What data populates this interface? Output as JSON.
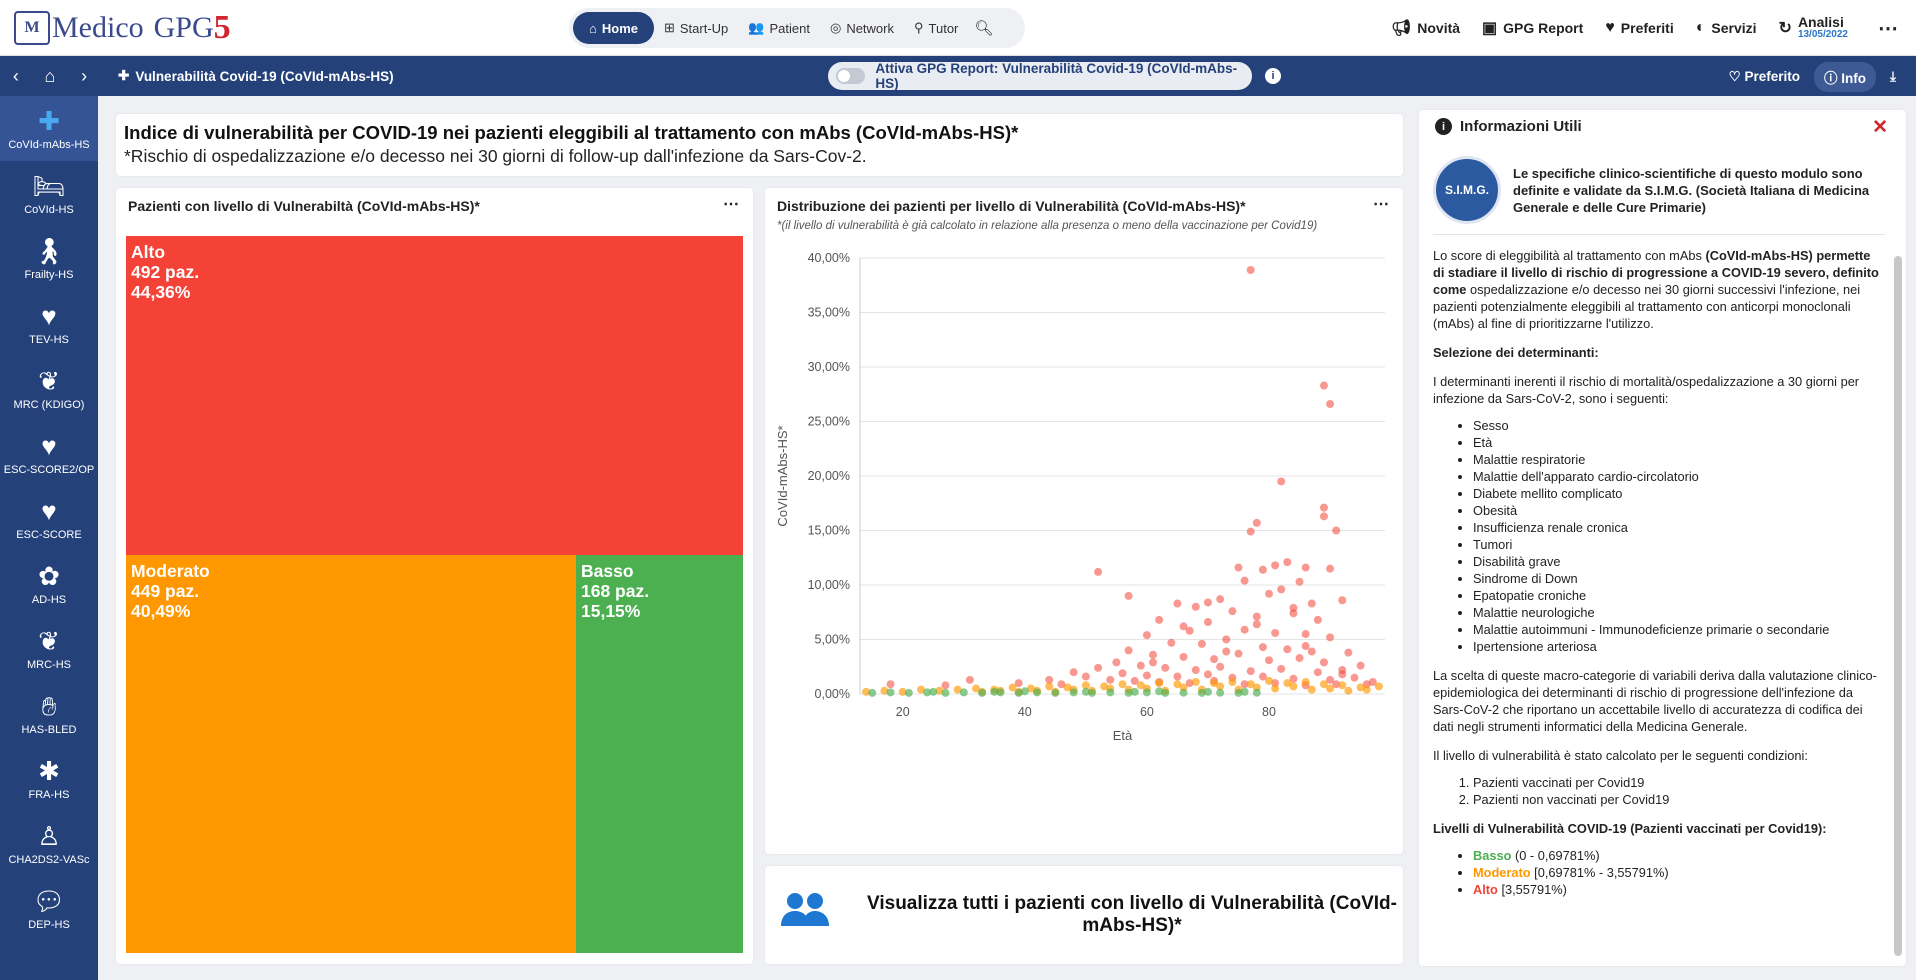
{
  "app": {
    "logo": {
      "mark": "M",
      "word": "Medico",
      "product": "GPG",
      "version": "5"
    },
    "tabs": [
      {
        "label": "Home",
        "icon": "home-icon"
      },
      {
        "label": "Start-Up",
        "icon": "grid-icon"
      },
      {
        "label": "Patient",
        "icon": "users-icon"
      },
      {
        "label": "Network",
        "icon": "network-icon"
      },
      {
        "label": "Tutor",
        "icon": "tutor-icon"
      }
    ],
    "right_menu": {
      "novita": "Novità",
      "gpg_report": "GPG Report",
      "preferiti": "Preferiti",
      "servizi": "Servizi",
      "analisi": "Analisi",
      "analisi_date": "13/05/2022"
    }
  },
  "bar2": {
    "breadcrumb": "Vulnerabilità Covid-19 (CoVId-mAbs-HS)",
    "toggle_label": "Attiva GPG Report: Vulnerabilità Covid-19 (CoVId-mAbs-HS)",
    "preferito": "Preferito",
    "info": "Info"
  },
  "sidebar": [
    {
      "label": "CoVId-mAbs-HS",
      "icon": "covid-icon"
    },
    {
      "label": "CoVId-HS",
      "icon": "bed-icon"
    },
    {
      "label": "Frailty-HS",
      "icon": "walker-icon"
    },
    {
      "label": "TEV-HS",
      "icon": "heart-pulse-icon"
    },
    {
      "label": "MRC (KDIGO)",
      "icon": "kidney-icon"
    },
    {
      "label": "ESC-SCORE2/OP",
      "icon": "heart-pulse-icon"
    },
    {
      "label": "ESC-SCORE",
      "icon": "heart-pulse-icon"
    },
    {
      "label": "AD-HS",
      "icon": "brain-icon"
    },
    {
      "label": "MRC-HS",
      "icon": "kidney-icon"
    },
    {
      "label": "HAS-BLED",
      "icon": "hands-icon"
    },
    {
      "label": "FRA-HS",
      "icon": "bone-icon"
    },
    {
      "label": "CHA2DS2-VASc",
      "icon": "person-icon"
    },
    {
      "label": "DEP-HS",
      "icon": "speech-icon"
    }
  ],
  "header": {
    "title": "Indice di vulnerabilità per COVID-19 nei pazienti eleggibili al trattamento con mAbs (CoVId-mAbs-HS)*",
    "subtitle": "*Rischio di ospedalizzazione e/o decesso nei 30 giorni di follow-up dall'infezione da Sars-Cov-2."
  },
  "treemap": {
    "title": "Pazienti con livello di Vulnerabiltà (CoVId-mAbs-HS)*",
    "tiles": [
      {
        "name": "Alto",
        "count": "492 paz.",
        "pct": "44,36%",
        "color": "#f44336"
      },
      {
        "name": "Moderato",
        "count": "449 paz.",
        "pct": "40,49%",
        "color": "#ff9800"
      },
      {
        "name": "Basso",
        "count": "168 paz.",
        "pct": "15,15%",
        "color": "#4caf50"
      }
    ]
  },
  "scatter": {
    "title": "Distribuzione dei pazienti per livello di Vulnerabilità (CoVId-mAbs-HS)*",
    "subtitle": "*(il livello di vulnerabilità è già calcolato in relazione alla presenza o meno della vaccinazione per Covid19)"
  },
  "chart_data": {
    "type": "scatter",
    "xlabel": "Età",
    "ylabel": "CoVId-mAbs-HS*",
    "xlim": [
      13,
      99
    ],
    "ylim": [
      0,
      40
    ],
    "xticks": [
      20,
      40,
      60,
      80
    ],
    "yticks": [
      "0,00%",
      "5,00%",
      "10,00%",
      "15,00%",
      "20,00%",
      "25,00%",
      "30,00%",
      "35,00%",
      "40,00%"
    ],
    "series": [
      {
        "level": "high",
        "color": "#f44336",
        "points": [
          [
            77,
            38.9
          ],
          [
            89,
            28.3
          ],
          [
            90,
            26.6
          ],
          [
            82,
            19.5
          ],
          [
            89,
            17.1
          ],
          [
            89,
            16.3
          ],
          [
            78,
            15.7
          ],
          [
            91,
            15.0
          ],
          [
            77,
            14.9
          ],
          [
            52,
            11.2
          ],
          [
            83,
            12.1
          ],
          [
            75,
            11.6
          ],
          [
            79,
            11.4
          ],
          [
            81,
            11.8
          ],
          [
            86,
            11.6
          ],
          [
            90,
            11.5
          ],
          [
            85,
            10.3
          ],
          [
            82,
            9.6
          ],
          [
            80,
            9.2
          ],
          [
            87,
            8.3
          ],
          [
            92,
            8.6
          ],
          [
            72,
            8.7
          ],
          [
            68,
            8.0
          ],
          [
            65,
            8.3
          ],
          [
            57,
            9.0
          ],
          [
            74,
            7.6
          ],
          [
            78,
            7.1
          ],
          [
            84,
            7.4
          ],
          [
            88,
            6.8
          ],
          [
            70,
            6.6
          ],
          [
            62,
            6.8
          ],
          [
            66,
            6.2
          ],
          [
            76,
            5.9
          ],
          [
            81,
            5.6
          ],
          [
            86,
            5.5
          ],
          [
            90,
            5.2
          ],
          [
            73,
            5.0
          ],
          [
            60,
            5.4
          ],
          [
            64,
            4.7
          ],
          [
            69,
            4.6
          ],
          [
            79,
            4.3
          ],
          [
            83,
            4.1
          ],
          [
            87,
            3.9
          ],
          [
            93,
            3.8
          ],
          [
            57,
            4.0
          ],
          [
            61,
            3.6
          ],
          [
            66,
            3.4
          ],
          [
            71,
            3.2
          ],
          [
            75,
            3.7
          ],
          [
            80,
            3.1
          ],
          [
            85,
            3.3
          ],
          [
            89,
            2.9
          ],
          [
            95,
            2.6
          ],
          [
            55,
            2.9
          ],
          [
            59,
            2.6
          ],
          [
            63,
            2.4
          ],
          [
            68,
            2.2
          ],
          [
            72,
            2.5
          ],
          [
            77,
            2.1
          ],
          [
            82,
            2.3
          ],
          [
            88,
            2.0
          ],
          [
            92,
            2.2
          ],
          [
            52,
            2.4
          ],
          [
            56,
            1.9
          ],
          [
            60,
            1.7
          ],
          [
            65,
            1.6
          ],
          [
            70,
            1.8
          ],
          [
            74,
            1.5
          ],
          [
            79,
            1.6
          ],
          [
            84,
            1.4
          ],
          [
            90,
            1.3
          ],
          [
            94,
            1.5
          ],
          [
            97,
            1.1
          ],
          [
            48,
            2.0
          ],
          [
            50,
            1.6
          ],
          [
            54,
            1.3
          ],
          [
            58,
            1.2
          ],
          [
            62,
            1.1
          ],
          [
            67,
            1.0
          ],
          [
            71,
            1.2
          ],
          [
            76,
            0.9
          ],
          [
            81,
            1.0
          ],
          [
            86,
            0.8
          ],
          [
            91,
            0.9
          ],
          [
            44,
            1.3
          ],
          [
            46,
            0.9
          ],
          [
            39,
            1.0
          ],
          [
            31,
            1.3
          ],
          [
            27,
            0.8
          ],
          [
            18,
            0.9
          ],
          [
            67,
            5.8
          ],
          [
            70,
            8.4
          ],
          [
            84,
            7.9
          ],
          [
            76,
            10.4
          ],
          [
            92,
            1.8
          ],
          [
            96,
            0.9
          ],
          [
            61,
            2.9
          ],
          [
            73,
            3.9
          ],
          [
            78,
            6.4
          ],
          [
            86,
            4.4
          ]
        ]
      },
      {
        "level": "moderate",
        "color": "#ff9800",
        "points": [
          [
            14,
            0.2
          ],
          [
            17,
            0.3
          ],
          [
            20,
            0.2
          ],
          [
            23,
            0.4
          ],
          [
            26,
            0.3
          ],
          [
            29,
            0.4
          ],
          [
            32,
            0.5
          ],
          [
            35,
            0.4
          ],
          [
            38,
            0.6
          ],
          [
            41,
            0.5
          ],
          [
            44,
            0.7
          ],
          [
            47,
            0.6
          ],
          [
            50,
            0.8
          ],
          [
            53,
            0.7
          ],
          [
            56,
            0.9
          ],
          [
            59,
            0.8
          ],
          [
            62,
            1.0
          ],
          [
            65,
            0.9
          ],
          [
            68,
            1.1
          ],
          [
            71,
            1.0
          ],
          [
            74,
            1.1
          ],
          [
            77,
            0.9
          ],
          [
            80,
            1.2
          ],
          [
            83,
            1.0
          ],
          [
            86,
            1.1
          ],
          [
            89,
            0.9
          ],
          [
            92,
            0.8
          ],
          [
            95,
            0.6
          ],
          [
            98,
            0.7
          ],
          [
            36,
            0.3
          ],
          [
            42,
            0.3
          ],
          [
            48,
            0.4
          ],
          [
            54,
            0.5
          ],
          [
            60,
            0.5
          ],
          [
            66,
            0.6
          ],
          [
            72,
            0.7
          ],
          [
            78,
            0.6
          ],
          [
            84,
            0.7
          ],
          [
            90,
            0.5
          ],
          [
            96,
            0.4
          ],
          [
            51,
            0.3
          ],
          [
            57,
            0.4
          ],
          [
            63,
            0.3
          ],
          [
            69,
            0.4
          ],
          [
            75,
            0.4
          ],
          [
            81,
            0.5
          ],
          [
            87,
            0.4
          ],
          [
            93,
            0.3
          ],
          [
            45,
            0.2
          ],
          [
            39,
            0.2
          ],
          [
            33,
            0.2
          ]
        ]
      },
      {
        "level": "low",
        "color": "#4caf50",
        "points": [
          [
            15,
            0.1
          ],
          [
            18,
            0.15
          ],
          [
            21,
            0.1
          ],
          [
            24,
            0.15
          ],
          [
            27,
            0.1
          ],
          [
            30,
            0.15
          ],
          [
            33,
            0.1
          ],
          [
            36,
            0.15
          ],
          [
            39,
            0.1
          ],
          [
            42,
            0.15
          ],
          [
            45,
            0.1
          ],
          [
            48,
            0.15
          ],
          [
            51,
            0.1
          ],
          [
            54,
            0.15
          ],
          [
            57,
            0.1
          ],
          [
            60,
            0.15
          ],
          [
            63,
            0.1
          ],
          [
            66,
            0.12
          ],
          [
            69,
            0.1
          ],
          [
            72,
            0.12
          ],
          [
            75,
            0.1
          ],
          [
            78,
            0.12
          ],
          [
            25,
            0.2
          ],
          [
            35,
            0.2
          ],
          [
            40,
            0.25
          ],
          [
            50,
            0.2
          ],
          [
            58,
            0.2
          ],
          [
            62,
            0.25
          ],
          [
            70,
            0.2
          ],
          [
            76,
            0.2
          ]
        ]
      }
    ]
  },
  "cta": {
    "text": "Visualizza tutti i pazienti con livello di Vulnerabilità (CoVId-mAbs-HS)*"
  },
  "info": {
    "title": "Informazioni Utili",
    "simg_seal": "S.I.M.G.",
    "simg_text": "Le specifiche clinico-scientifiche di questo modulo sono definite e validate da S.I.M.G. (Società Italiana di Medicina Generale e delle Cure Primarie)",
    "p1_a": "Lo score di eleggibilità al trattamento con mAbs ",
    "p1_b": "(CoVId-mAbs-HS) permette di stadiare il livello di rischio di progressione a COVID-19 severo, definito come",
    "p1_c": " ospedalizzazione e/o decesso nei 30 giorni successivi l'infezione, nei pazienti potenzialmente eleggibili al trattamento con anticorpi monoclonali (mAbs) al fine di prioritizzarne l'utilizzo.",
    "sel_title": "Selezione dei determinanti:",
    "p2": "I determinanti inerenti il rischio di mortalità/ospedalizzazione a 30 giorni per infezione da Sars-CoV-2, sono i seguenti:",
    "determinanti": [
      "Sesso",
      "Età",
      "Malattie respiratorie",
      "Malattie dell'apparato cardio-circolatorio",
      "Diabete mellito complicato",
      "Obesità",
      "Insufficienza renale cronica",
      "Tumori",
      "Disabilità grave",
      "Sindrome di Down",
      "Epatopatie croniche",
      "Malattie neurologiche",
      "Malattie autoimmuni - Immunodeficienze primarie o secondarie",
      "Ipertensione arteriosa"
    ],
    "p3": "La scelta di queste macro-categorie di variabili deriva dalla valutazione clinico-epidemiologica dei determinanti di rischio di progressione dell'infezione da Sars-CoV-2 che riportano un accettabile livello di accuratezza di codifica dei dati negli strumenti informatici della Medicina Generale.",
    "p4": "Il livello di vulnerabilità è stato calcolato per le seguenti condizioni:",
    "condizioni": [
      "Pazienti vaccinati per Covid19",
      "Pazienti non vaccinati per Covid19"
    ],
    "livelli_title": "Livelli di Vulnerabilità COVID-19 (Pazienti vaccinati per Covid19):",
    "livelli": [
      {
        "name": "Basso",
        "range": " (0 - 0,69781%)",
        "color": "#4caf50"
      },
      {
        "name": "Moderato",
        "range": " [0,69781% - 3,55791%)",
        "color": "#ff9800"
      },
      {
        "name": "Alto",
        "range": " [3,55791%)",
        "color": "#f44336"
      }
    ]
  }
}
